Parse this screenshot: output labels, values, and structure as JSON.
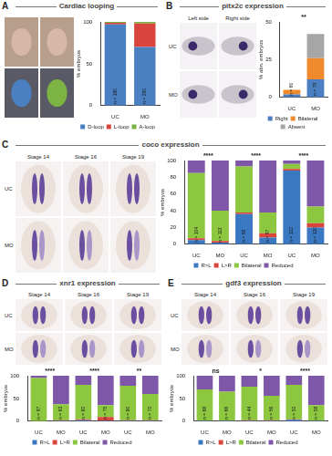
{
  "chart_data": [
    {
      "panel": "A",
      "title": "Cardiac looping",
      "type": "bar",
      "stacked": true,
      "grid": false,
      "legend": "bottom",
      "y_label": "% embryos",
      "categories": [
        "UC",
        "MO"
      ],
      "series": [
        {
          "name": "D-loop",
          "color": "#4a7fc1",
          "values": [
            97,
            70
          ]
        },
        {
          "name": "L-loop",
          "color": "#d9453c",
          "values": [
            2,
            28
          ]
        },
        {
          "name": "A-loop",
          "color": "#7cb342",
          "values": [
            1,
            2
          ]
        }
      ],
      "ylim": [
        0,
        100
      ],
      "yticks": [
        0,
        50,
        100
      ],
      "n_labels": [
        "n = 180",
        "n = 290"
      ]
    },
    {
      "panel": "B",
      "title": "pitx2c expression",
      "type": "bar",
      "stacked": true,
      "grid": false,
      "legend": "bottom",
      "y_label": "% abn. embryos",
      "categories": [
        "UC",
        "MO"
      ],
      "image_columns": [
        "Left side",
        "Right side"
      ],
      "image_rows": [
        "UC",
        "MO"
      ],
      "series": [
        {
          "name": "Right",
          "color": "#4a7fc1",
          "values": [
            2,
            12
          ]
        },
        {
          "name": "Bilateral",
          "color": "#f08a2c",
          "values": [
            3,
            14
          ]
        },
        {
          "name": "Absent",
          "color": "#a6a6a6",
          "values": [
            0,
            16
          ]
        }
      ],
      "ylim": [
        0,
        50
      ],
      "yticks": [
        0,
        25,
        50
      ],
      "n_labels": [
        "n = 60",
        "n = 79"
      ],
      "significance": [
        "**"
      ]
    },
    {
      "panel": "C",
      "title": "coco expression",
      "type": "bar",
      "stacked": true,
      "grid": false,
      "legend": "bottom",
      "y_label": "% embryos",
      "categories": [
        "UC",
        "MO",
        "UC",
        "MO",
        "UC",
        "MO"
      ],
      "image_columns": [
        "Stage 14",
        "Stage 16",
        "Stage 19"
      ],
      "image_rows": [
        "UC",
        "MO"
      ],
      "series": [
        {
          "name": "R>L",
          "color": "#3b78c2",
          "values": [
            5,
            2,
            36,
            8,
            88,
            20
          ]
        },
        {
          "name": "L>R",
          "color": "#d9453c",
          "values": [
            2,
            2,
            2,
            5,
            2,
            5
          ]
        },
        {
          "name": "Bilateral",
          "color": "#8dc63f",
          "values": [
            78,
            36,
            55,
            25,
            6,
            20
          ]
        },
        {
          "name": "Reduced",
          "color": "#7e57a8",
          "values": [
            15,
            60,
            7,
            62,
            4,
            55
          ]
        }
      ],
      "ylim": [
        0,
        100
      ],
      "yticks": [
        0,
        20,
        40,
        60,
        80,
        100
      ],
      "n_labels": [
        "n = 104",
        "n = 113",
        "n = 98",
        "n = 97",
        "n = 122",
        "n = 120"
      ],
      "significance": [
        "****",
        "****",
        "****"
      ]
    },
    {
      "panel": "D",
      "title": "xnr1 expression",
      "type": "bar",
      "stacked": true,
      "grid": false,
      "legend": "bottom",
      "y_label": "% embryos",
      "categories": [
        "UC",
        "MO",
        "UC",
        "MO",
        "UC",
        "MO"
      ],
      "image_columns": [
        "Stage 14",
        "Stage 16",
        "Stage 19"
      ],
      "image_rows": [
        "UC",
        "MO"
      ],
      "series": [
        {
          "name": "R>L",
          "color": "#3b78c2",
          "values": [
            0,
            1,
            2,
            1,
            1,
            1
          ]
        },
        {
          "name": "L>R",
          "color": "#d9453c",
          "values": [
            0,
            1,
            2,
            8,
            1,
            1
          ]
        },
        {
          "name": "Bilateral",
          "color": "#8dc63f",
          "values": [
            95,
            35,
            76,
            26,
            76,
            58
          ]
        },
        {
          "name": "Reduced",
          "color": "#7e57a8",
          "values": [
            5,
            63,
            20,
            65,
            22,
            40
          ]
        }
      ],
      "ylim": [
        0,
        100
      ],
      "yticks": [
        0,
        50,
        100
      ],
      "n_labels": [
        "n = 97",
        "n = 63",
        "n = 82",
        "n = 75",
        "n = 80",
        "n = 71"
      ],
      "significance": [
        "****",
        "****",
        "**"
      ]
    },
    {
      "panel": "E",
      "title": "gdf3 expression",
      "type": "bar",
      "stacked": true,
      "grid": false,
      "legend": "bottom",
      "y_label": "% embryos",
      "categories": [
        "UC",
        "MO",
        "UC",
        "MO",
        "UC",
        "MO"
      ],
      "image_columns": [
        "Stage 14",
        "Stage 16",
        "Stage 19"
      ],
      "image_rows": [
        "UC",
        "MO"
      ],
      "series": [
        {
          "name": "R>L",
          "color": "#3b78c2",
          "values": [
            1,
            1,
            1,
            1,
            3,
            1
          ]
        },
        {
          "name": "L>R",
          "color": "#d9453c",
          "values": [
            0,
            0,
            1,
            1,
            1,
            0
          ]
        },
        {
          "name": "Bilateral",
          "color": "#8dc63f",
          "values": [
            69,
            64,
            74,
            54,
            76,
            34
          ]
        },
        {
          "name": "Reduced",
          "color": "#7e57a8",
          "values": [
            30,
            35,
            24,
            44,
            20,
            65
          ]
        }
      ],
      "ylim": [
        0,
        100
      ],
      "yticks": [
        0,
        50,
        100
      ],
      "n_labels": [
        "n = 68",
        "n = 66",
        "n = 44",
        "n = 56",
        "n = 52",
        "n = 58"
      ],
      "significance": [
        "ns",
        "*",
        "****"
      ]
    }
  ]
}
